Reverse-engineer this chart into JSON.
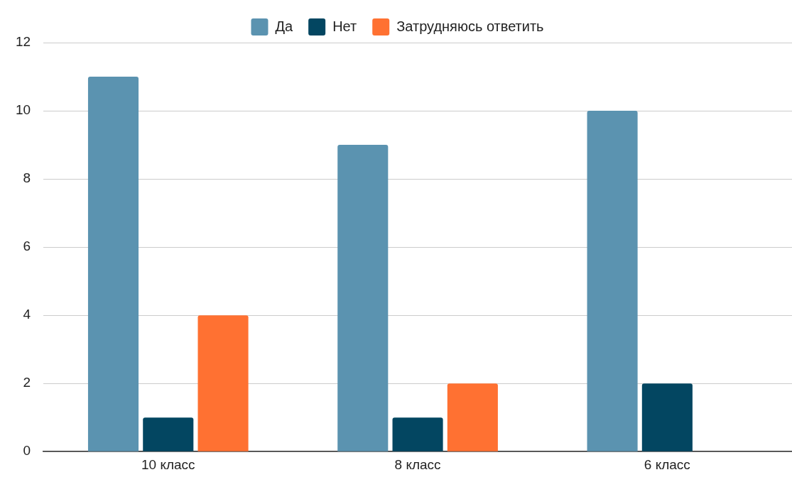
{
  "chart_data": {
    "type": "bar",
    "categories": [
      "10 класс",
      "8 класс",
      "6 класс"
    ],
    "series": [
      {
        "name": "Да",
        "color": "#5b93b0",
        "values": [
          11,
          9,
          10
        ]
      },
      {
        "name": "Нет",
        "color": "#034661",
        "values": [
          1,
          1,
          2
        ]
      },
      {
        "name": "Затрудняюсь ответить",
        "color": "#ff7132",
        "values": [
          4,
          2,
          null
        ]
      }
    ],
    "ylim": [
      0,
      12
    ],
    "yticks": [
      0,
      2,
      4,
      6,
      8,
      10,
      12
    ],
    "grid": "y",
    "legend": "top"
  }
}
